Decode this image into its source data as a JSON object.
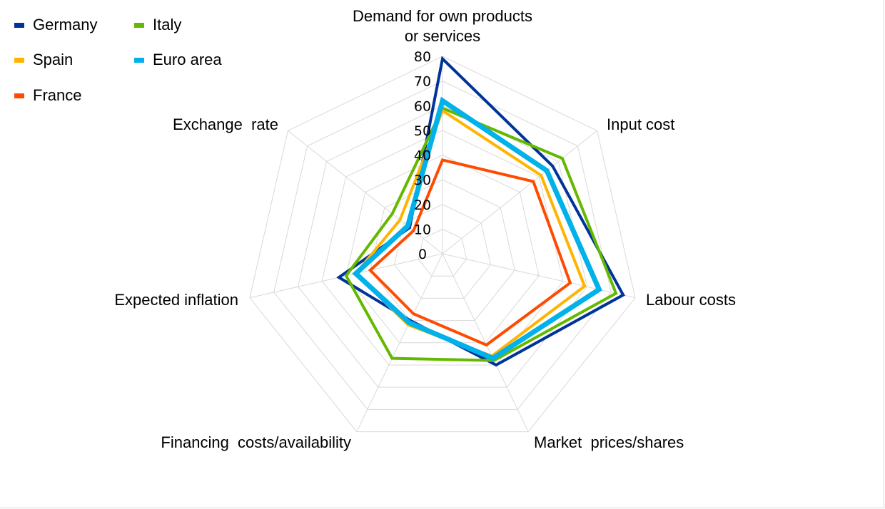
{
  "chart_data": {
    "type": "radar",
    "title": "",
    "axes": [
      "Demand for own products or services",
      "Input cost",
      "Labour costs",
      "Market  prices/shares",
      "Financing  costs/availability",
      "Expected inflation",
      "Exchange  rate"
    ],
    "axis_label_lines": [
      [
        "Demand for own products",
        "or services"
      ],
      [
        "Input cost"
      ],
      [
        "Labour costs"
      ],
      [
        "Market  prices/shares"
      ],
      [
        "Financing  costs/availability"
      ],
      [
        "Expected inflation"
      ],
      [
        "Exchange  rate"
      ]
    ],
    "rlim": [
      0,
      80
    ],
    "ticks": [
      0,
      10,
      20,
      30,
      40,
      50,
      60,
      70,
      80
    ],
    "tick_labels": [
      "0",
      "10",
      "20",
      "30",
      "40",
      "50",
      "60",
      "70",
      "80"
    ],
    "grid": true,
    "legend_position": "top-left",
    "series": [
      {
        "name": "Germany",
        "color": "#003399",
        "values": [
          79,
          57,
          75,
          50,
          30,
          43,
          17
        ]
      },
      {
        "name": "Italy",
        "color": "#65b800",
        "values": [
          59,
          62,
          72,
          48,
          47,
          40,
          26
        ]
      },
      {
        "name": "Spain",
        "color": "#ffb400",
        "values": [
          58,
          51,
          59,
          46,
          32,
          36,
          22
        ]
      },
      {
        "name": "Euro area",
        "color": "#00b1ea",
        "values": [
          62,
          54,
          65,
          47,
          31,
          36,
          18
        ]
      },
      {
        "name": "France",
        "color": "#ff4b00",
        "values": [
          38,
          47,
          53,
          41,
          27,
          30,
          15
        ]
      }
    ]
  }
}
